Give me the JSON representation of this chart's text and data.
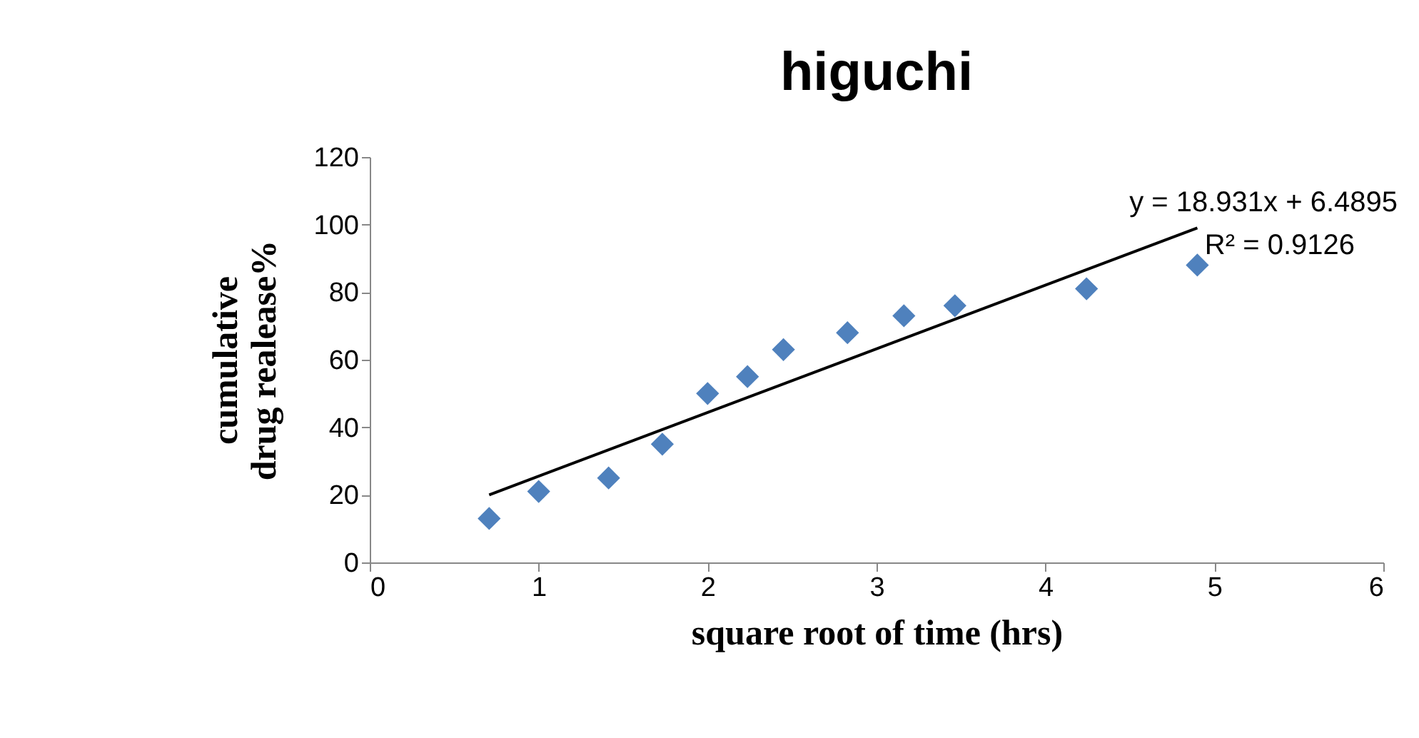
{
  "chart_data": {
    "type": "scatter",
    "title": "higuchi",
    "xlabel": "square root of time (hrs)",
    "ylabel": "cumulative\ndrug realease%",
    "xlim": [
      0,
      6
    ],
    "xticks": [
      0,
      1,
      2,
      3,
      4,
      5,
      6
    ],
    "ylim": [
      0,
      120
    ],
    "yticks": [
      0,
      20,
      40,
      60,
      80,
      100,
      120
    ],
    "grid": false,
    "marker": "diamond",
    "series": [
      {
        "color": "#4f81bd",
        "x": [
          0.707,
          1,
          1.414,
          1.732,
          2,
          2.236,
          2.449,
          2.828,
          3.162,
          3.464,
          4.243,
          4.899
        ],
        "values": [
          13,
          21,
          25,
          35,
          50,
          55,
          63,
          68,
          73,
          76,
          81,
          88
        ]
      },
      {
        "type": "line",
        "marker": "none",
        "color": "#000000",
        "x": [
          0.707,
          4.899
        ],
        "values": [
          20,
          99
        ]
      }
    ],
    "annotations": [
      "y = 18.931x + 6.4895",
      "R² = 0.9126"
    ]
  }
}
